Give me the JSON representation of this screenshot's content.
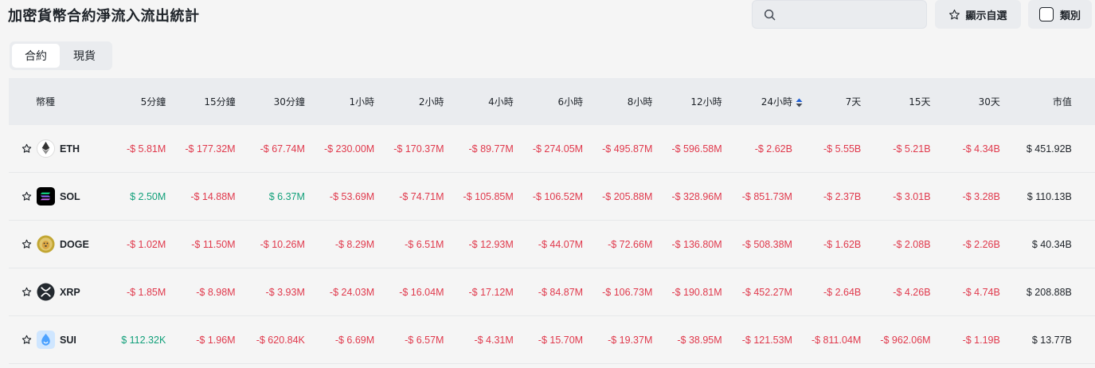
{
  "header": {
    "title": "加密貨幣合約淨流入流出統計",
    "search_placeholder": "",
    "favorites_label": "顯示自選",
    "category_label": "類別"
  },
  "tabs": [
    {
      "label": "合約",
      "active": true
    },
    {
      "label": "現貨",
      "active": false
    }
  ],
  "table": {
    "columns": [
      "幣種",
      "5分鐘",
      "15分鐘",
      "30分鐘",
      "1小時",
      "2小時",
      "4小時",
      "6小時",
      "8小時",
      "12小時",
      "24小時",
      "7天",
      "15天",
      "30天",
      "市值"
    ],
    "sorted_column": "24小時",
    "rows": [
      {
        "symbol": "ETH",
        "icon": "eth-icon",
        "values": [
          "-$ 5.81M",
          "-$ 177.32M",
          "-$ 67.74M",
          "-$ 230.00M",
          "-$ 170.37M",
          "-$ 89.77M",
          "-$ 274.05M",
          "-$ 495.87M",
          "-$ 596.58M",
          "-$ 2.62B",
          "-$ 5.55B",
          "-$ 5.21B",
          "-$ 4.34B"
        ],
        "market_cap": "$ 451.92B"
      },
      {
        "symbol": "SOL",
        "icon": "sol-icon",
        "values": [
          "$ 2.50M",
          "-$ 14.88M",
          "$ 6.37M",
          "-$ 53.69M",
          "-$ 74.71M",
          "-$ 105.85M",
          "-$ 106.52M",
          "-$ 205.88M",
          "-$ 328.96M",
          "-$ 851.73M",
          "-$ 2.37B",
          "-$ 3.01B",
          "-$ 3.28B"
        ],
        "market_cap": "$ 110.13B"
      },
      {
        "symbol": "DOGE",
        "icon": "doge-icon",
        "values": [
          "-$ 1.02M",
          "-$ 11.50M",
          "-$ 10.26M",
          "-$ 8.29M",
          "-$ 6.51M",
          "-$ 12.93M",
          "-$ 44.07M",
          "-$ 72.66M",
          "-$ 136.80M",
          "-$ 508.38M",
          "-$ 1.62B",
          "-$ 2.08B",
          "-$ 2.26B"
        ],
        "market_cap": "$ 40.34B"
      },
      {
        "symbol": "XRP",
        "icon": "xrp-icon",
        "values": [
          "-$ 1.85M",
          "-$ 8.98M",
          "-$ 3.93M",
          "-$ 24.03M",
          "-$ 16.04M",
          "-$ 17.12M",
          "-$ 84.87M",
          "-$ 106.73M",
          "-$ 190.81M",
          "-$ 452.27M",
          "-$ 2.64B",
          "-$ 4.26B",
          "-$ 4.74B"
        ],
        "market_cap": "$ 208.88B"
      },
      {
        "symbol": "SUI",
        "icon": "sui-icon",
        "values": [
          "$ 112.32K",
          "-$ 1.96M",
          "-$ 620.84K",
          "-$ 6.69M",
          "-$ 6.57M",
          "-$ 4.31M",
          "-$ 15.70M",
          "-$ 19.37M",
          "-$ 38.95M",
          "-$ 121.53M",
          "-$ 811.04M",
          "-$ 962.06M",
          "-$ 1.19B"
        ],
        "market_cap": "$ 13.77B"
      }
    ]
  },
  "colors": {
    "negative": "#e0394c",
    "positive": "#12a07a"
  }
}
